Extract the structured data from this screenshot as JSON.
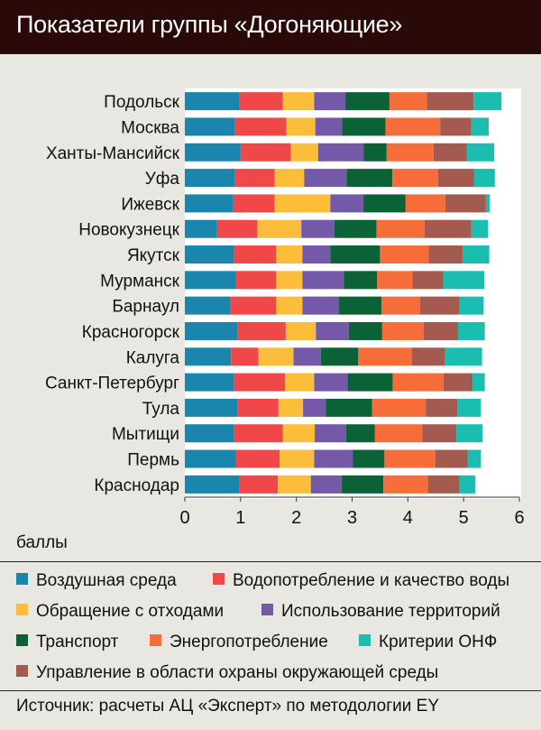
{
  "title": "Показатели группы «Догоняющие»",
  "source": "Источник: расчеты АЦ «Эксперт» по методологии EY",
  "colors": {
    "header_bg": "#2a0a08",
    "panel_bg": "#e8e7e1",
    "chart_bg": "#ffffff"
  },
  "chart_data": {
    "type": "bar",
    "orientation": "horizontal",
    "stacked": true,
    "title": "Показатели группы «Догоняющие»",
    "xlabel": "баллы",
    "xlim": [
      0,
      6
    ],
    "xticks": [
      "0",
      "1",
      "2",
      "3",
      "4",
      "5",
      "6"
    ],
    "grid": false,
    "legend_position": "bottom",
    "categories": [
      "Подольск",
      "Москва",
      "Ханты-Мансийск",
      "Уфа",
      "Ижевск",
      "Новокузнецк",
      "Якутск",
      "Мурманск",
      "Барнаул",
      "Красногорск",
      "Калуга",
      "Санкт-Петербург",
      "Тула",
      "Мытищи",
      "Пермь",
      "Краснодар"
    ],
    "series": [
      {
        "name": "Воздушная среда",
        "color": "#1a86ad",
        "values": [
          0.98,
          0.9,
          1.0,
          0.9,
          0.87,
          0.58,
          0.88,
          0.92,
          0.82,
          0.95,
          0.83,
          0.88,
          0.94,
          0.88,
          0.92,
          0.98
        ]
      },
      {
        "name": "Водопотребление и качество воды",
        "color": "#f04848",
        "values": [
          0.78,
          0.92,
          0.9,
          0.71,
          0.74,
          0.72,
          0.76,
          0.72,
          0.82,
          0.86,
          0.49,
          0.92,
          0.74,
          0.88,
          0.78,
          0.69
        ]
      },
      {
        "name": "Обращение с отходами",
        "color": "#fbbd3a",
        "values": [
          0.56,
          0.52,
          0.49,
          0.53,
          1.0,
          0.79,
          0.47,
          0.47,
          0.47,
          0.54,
          0.63,
          0.52,
          0.44,
          0.57,
          0.62,
          0.59
        ]
      },
      {
        "name": "Использование территорий",
        "color": "#7359a7",
        "values": [
          0.56,
          0.48,
          0.82,
          0.76,
          0.59,
          0.59,
          0.5,
          0.74,
          0.65,
          0.59,
          0.49,
          0.6,
          0.41,
          0.56,
          0.69,
          0.55
        ]
      },
      {
        "name": "Транспорт",
        "color": "#0a6236",
        "values": [
          0.79,
          0.78,
          0.41,
          0.82,
          0.76,
          0.76,
          0.89,
          0.6,
          0.77,
          0.6,
          0.67,
          0.81,
          0.83,
          0.52,
          0.57,
          0.75
        ]
      },
      {
        "name": "Энергопотребление",
        "color": "#f76d3a",
        "values": [
          0.67,
          0.98,
          0.84,
          0.82,
          0.71,
          0.86,
          0.87,
          0.63,
          0.69,
          0.74,
          0.96,
          0.91,
          0.96,
          0.85,
          0.91,
          0.8
        ]
      },
      {
        "name": "Управление в области охраны окружающей среды",
        "color": "#a45a4e",
        "values": [
          0.84,
          0.56,
          0.6,
          0.65,
          0.73,
          0.84,
          0.61,
          0.56,
          0.71,
          0.62,
          0.6,
          0.52,
          0.57,
          0.61,
          0.58,
          0.57
        ]
      },
      {
        "name": "Критерии ОНФ",
        "color": "#1bbdb0",
        "values": [
          0.5,
          0.31,
          0.49,
          0.37,
          0.07,
          0.3,
          0.48,
          0.73,
          0.43,
          0.48,
          0.66,
          0.22,
          0.42,
          0.47,
          0.24,
          0.28
        ]
      }
    ]
  },
  "legend_rows": [
    [
      0,
      1
    ],
    [
      2,
      3
    ],
    [
      4,
      5,
      7
    ],
    [
      6
    ]
  ]
}
